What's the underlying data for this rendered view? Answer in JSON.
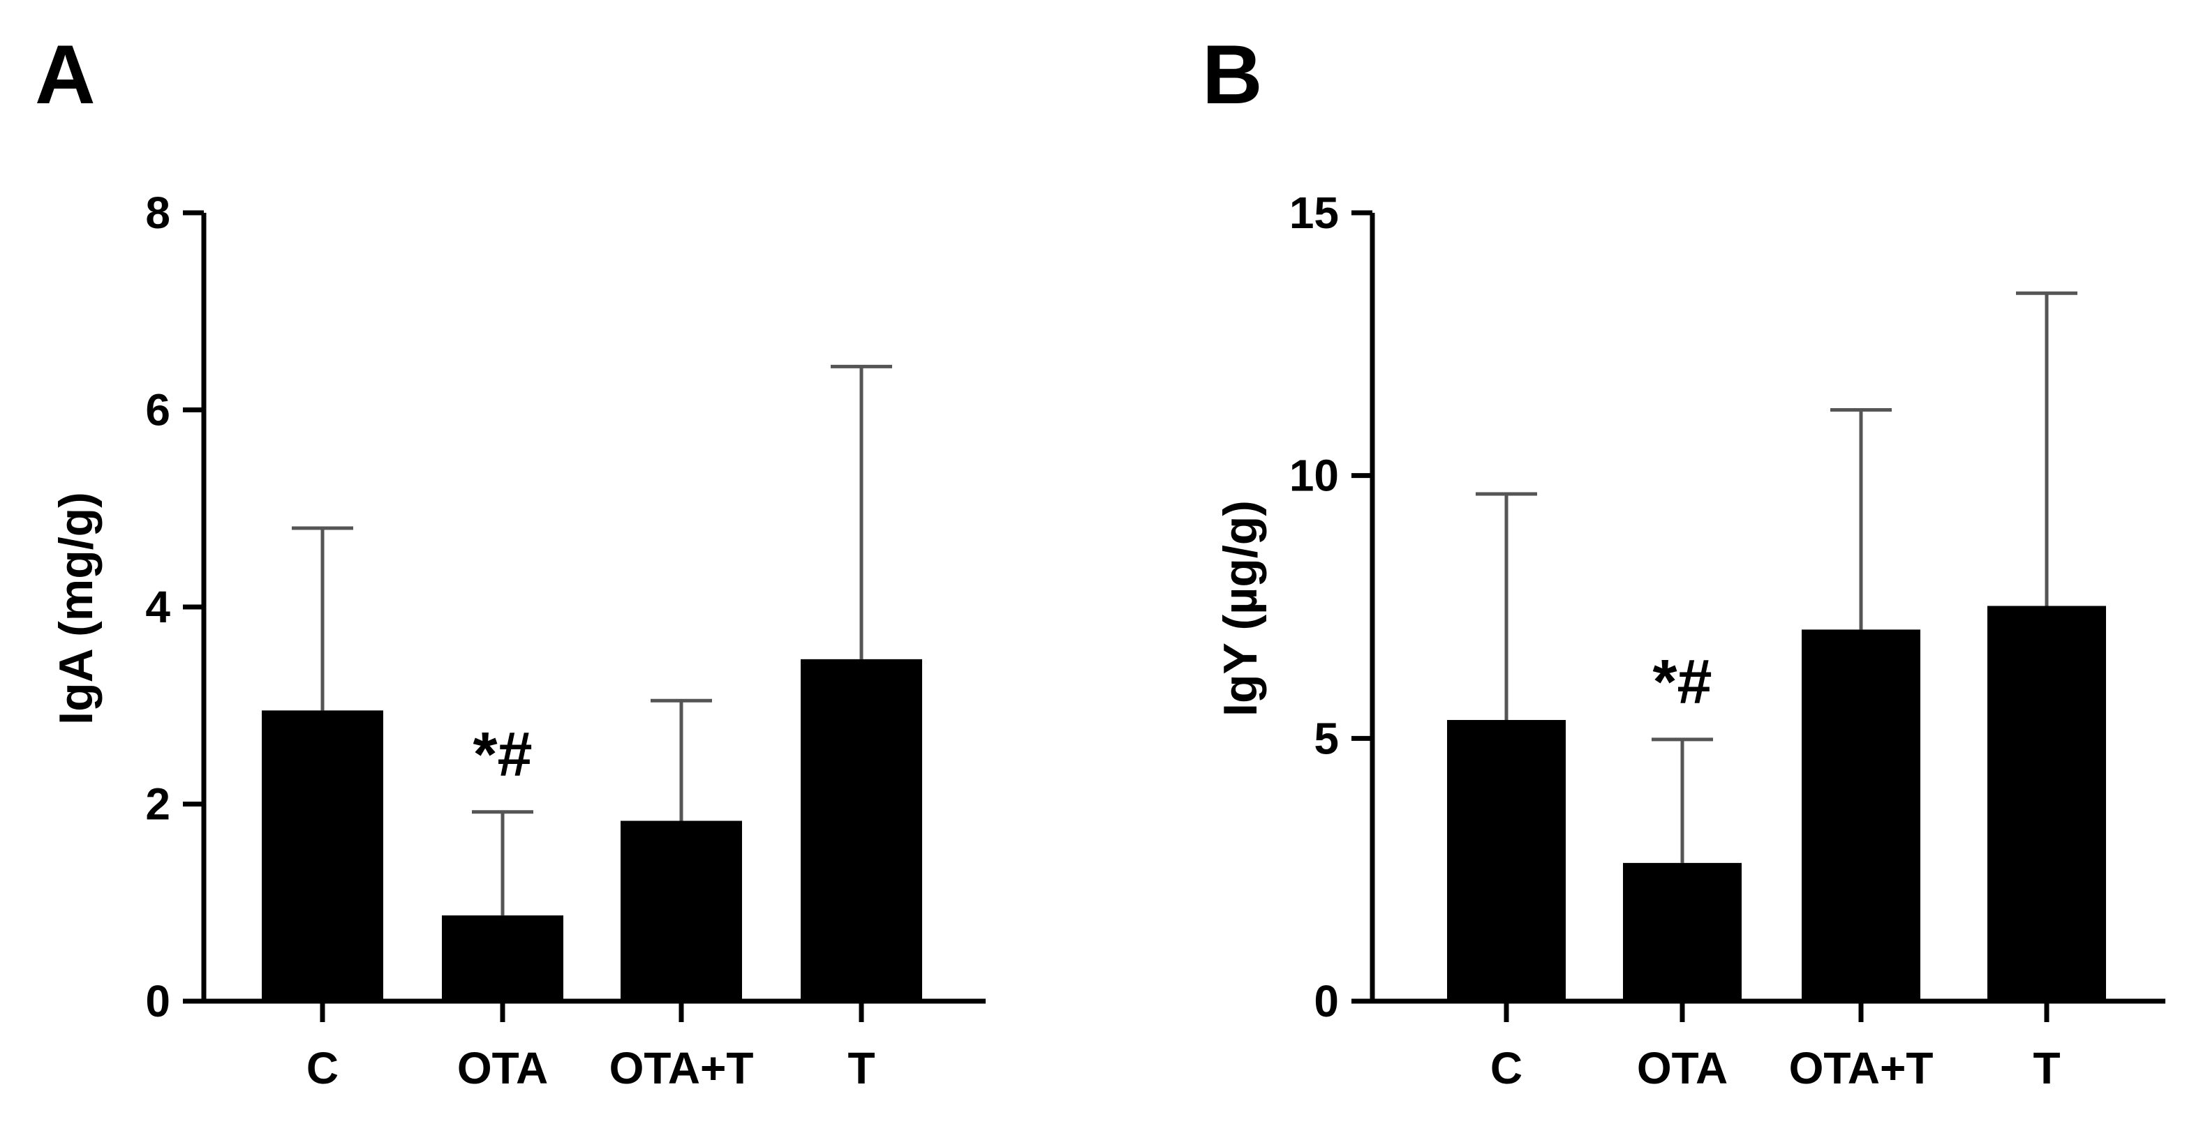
{
  "chart_data": [
    {
      "type": "bar",
      "panel_label": "A",
      "title": "",
      "xlabel": "",
      "ylabel": "IgA (mg/g)",
      "ylim": [
        0,
        8
      ],
      "yticks": [
        0,
        2,
        4,
        6,
        8
      ],
      "categories": [
        "C",
        "OTA",
        "OTA+T",
        "T"
      ],
      "values": [
        2.95,
        0.87,
        1.83,
        3.47
      ],
      "error_upper": [
        1.85,
        1.05,
        1.22,
        2.97
      ],
      "annotations": [
        "",
        "*#",
        "",
        ""
      ],
      "bar_color": "#000000",
      "error_color": "#555555"
    },
    {
      "type": "bar",
      "panel_label": "B",
      "title": "",
      "xlabel": "",
      "ylabel": "IgY (µg/g)",
      "ylim": [
        0,
        15
      ],
      "yticks": [
        0,
        5,
        10,
        15
      ],
      "categories": [
        "C",
        "OTA",
        "OTA+T",
        "T"
      ],
      "values": [
        5.35,
        2.63,
        7.07,
        7.52
      ],
      "error_upper": [
        4.3,
        2.35,
        4.18,
        5.95
      ],
      "annotations": [
        "",
        "*#",
        "",
        ""
      ],
      "bar_color": "#000000",
      "error_color": "#555555"
    }
  ]
}
